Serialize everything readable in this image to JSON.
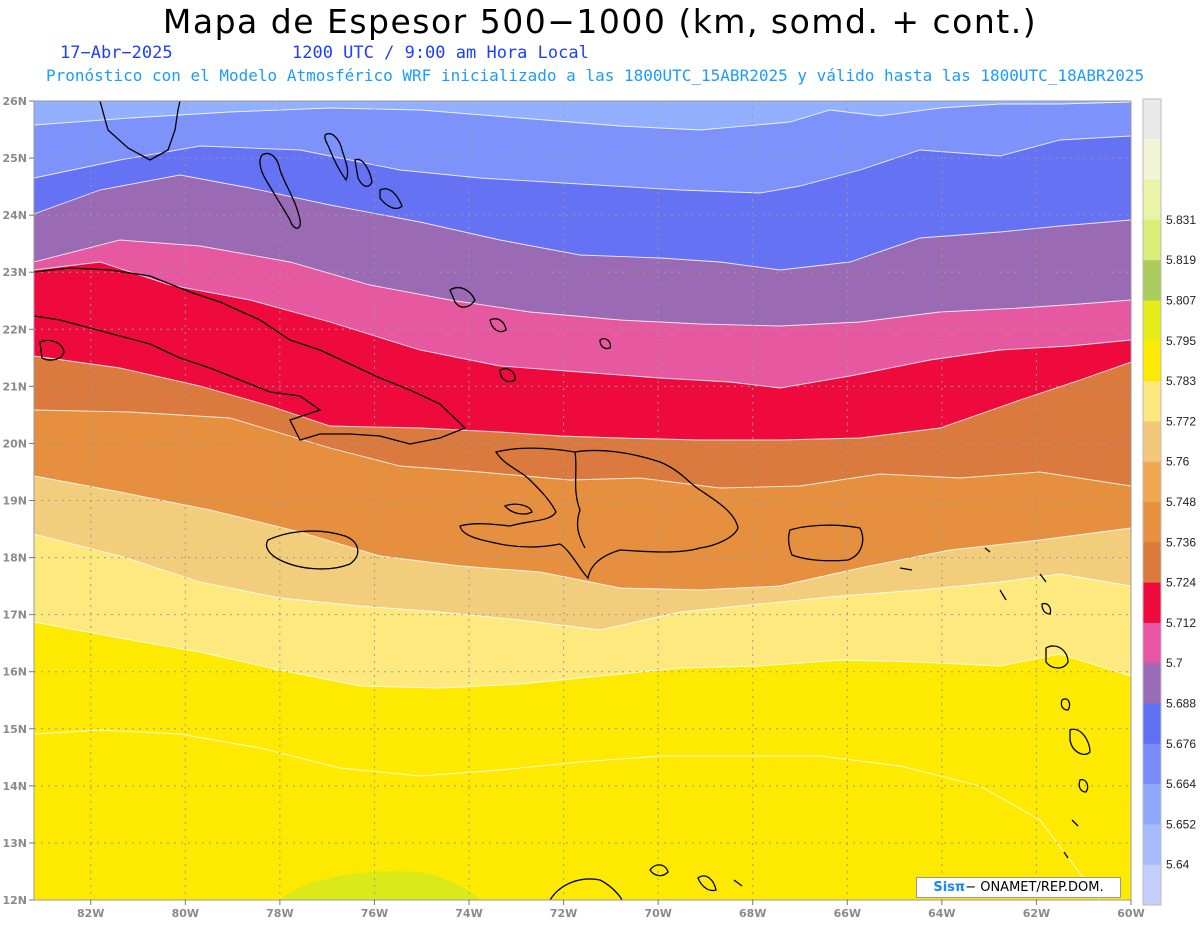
{
  "header": {
    "title": "Mapa de Espesor 500−1000 (km, somd. + cont.)",
    "date": "17−Abr−2025",
    "time": "1200 UTC / 9:00 am Hora Local",
    "subtitle": "Pronóstico con el Modelo Atmosférico WRF inicializado a las 1800UTC_15ABR2025 y válido hasta las  1800UTC_18ABR2025"
  },
  "map": {
    "lon_ticks": [
      "82W",
      "80W",
      "78W",
      "76W",
      "74W",
      "72W",
      "70W",
      "68W",
      "66W",
      "64W",
      "62W",
      "60W"
    ],
    "lat_ticks": [
      "26N",
      "25N",
      "24N",
      "23N",
      "22N",
      "21N",
      "20N",
      "19N",
      "18N",
      "17N",
      "16N",
      "15N",
      "14N",
      "13N",
      "12N"
    ],
    "lon_range": [
      -83.2,
      -60.0
    ],
    "lat_range": [
      12.0,
      26.0
    ],
    "gridlines": true,
    "coastline_color": "#000000"
  },
  "colorbar": {
    "labels": [
      "5.64",
      "5.652",
      "5.664",
      "5.676",
      "5.688",
      "5.7",
      "5.712",
      "5.724",
      "5.736",
      "5.748",
      "5.76",
      "5.772",
      "5.783",
      "5.795",
      "5.807",
      "5.819",
      "5.831"
    ],
    "colors": [
      "#c4cffd",
      "#a7bbfe",
      "#8da8fd",
      "#7a8cfb",
      "#6171f4",
      "#9a6cb5",
      "#e656a4",
      "#ee0a3c",
      "#dc7a3c",
      "#e7903f",
      "#f0a84e",
      "#f2c97c",
      "#fee77e",
      "#feea00",
      "#e6ec1a",
      "#a9cc5c",
      "#d9ee78",
      "#eaf3a8",
      "#f1f5d6",
      "#e9e9e9"
    ]
  },
  "bands": [
    {
      "color": "#93b0ff"
    },
    {
      "color": "#7d93fb"
    },
    {
      "color": "#6472f3"
    },
    {
      "color": "#9a6ab4"
    },
    {
      "color": "#e6589f"
    },
    {
      "color": "#ef0a3d"
    },
    {
      "color": "#db7a3e"
    },
    {
      "color": "#e6903f"
    },
    {
      "color": "#f2cd7c"
    },
    {
      "color": "#fee97f"
    },
    {
      "color": "#feea00"
    }
  ],
  "credit": {
    "sis": "Sisπ",
    "org": "− ONAMET/REP.DOM."
  }
}
